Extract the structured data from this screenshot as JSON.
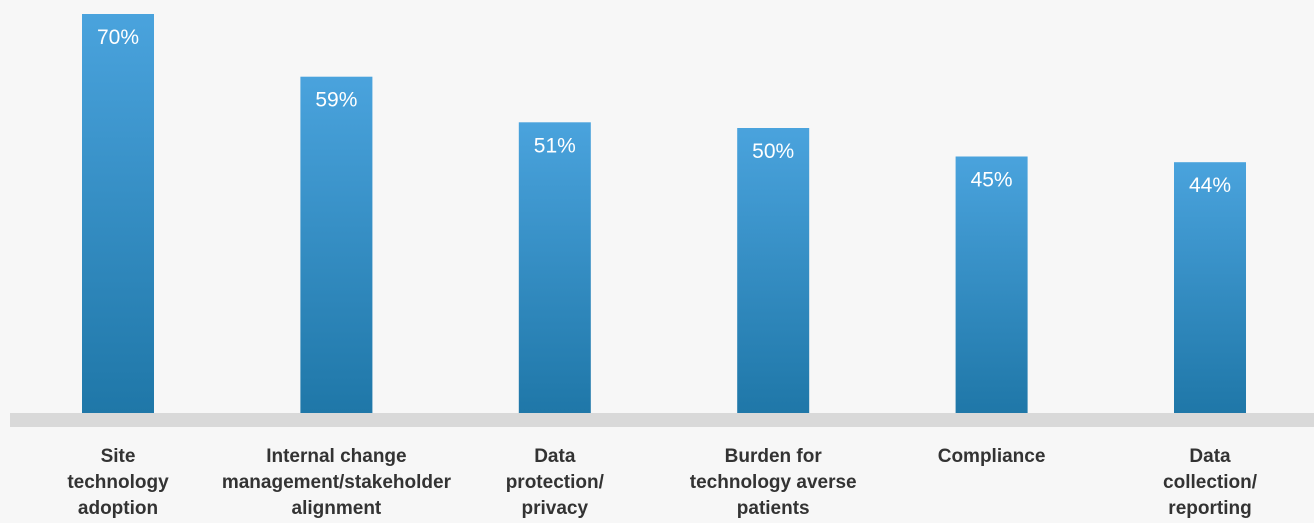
{
  "chart_data": {
    "type": "bar",
    "categories": [
      [
        "Site",
        "technology",
        "adoption"
      ],
      [
        "Internal change",
        "management/stakeholder",
        "alignment"
      ],
      [
        "Data",
        "protection/",
        "privacy"
      ],
      [
        "Burden for",
        "technology averse",
        "patients"
      ],
      [
        "Compliance"
      ],
      [
        "Data",
        "collection/",
        "reporting"
      ]
    ],
    "values": [
      70,
      59,
      51,
      50,
      45,
      44
    ],
    "value_labels": [
      "70%",
      "59%",
      "51%",
      "50%",
      "45%",
      "44%"
    ],
    "unit": "%",
    "ylim": [
      0,
      70
    ],
    "grid": false,
    "legend": "none",
    "title": "",
    "xlabel": "",
    "ylabel": "",
    "colors": {
      "bar_top": "#4aa3dd",
      "bar_bottom": "#1f77a8",
      "baseline": "#d9d9d9",
      "value_text": "#ffffff",
      "label_text": "#333333",
      "background": "#f7f7f7"
    }
  }
}
